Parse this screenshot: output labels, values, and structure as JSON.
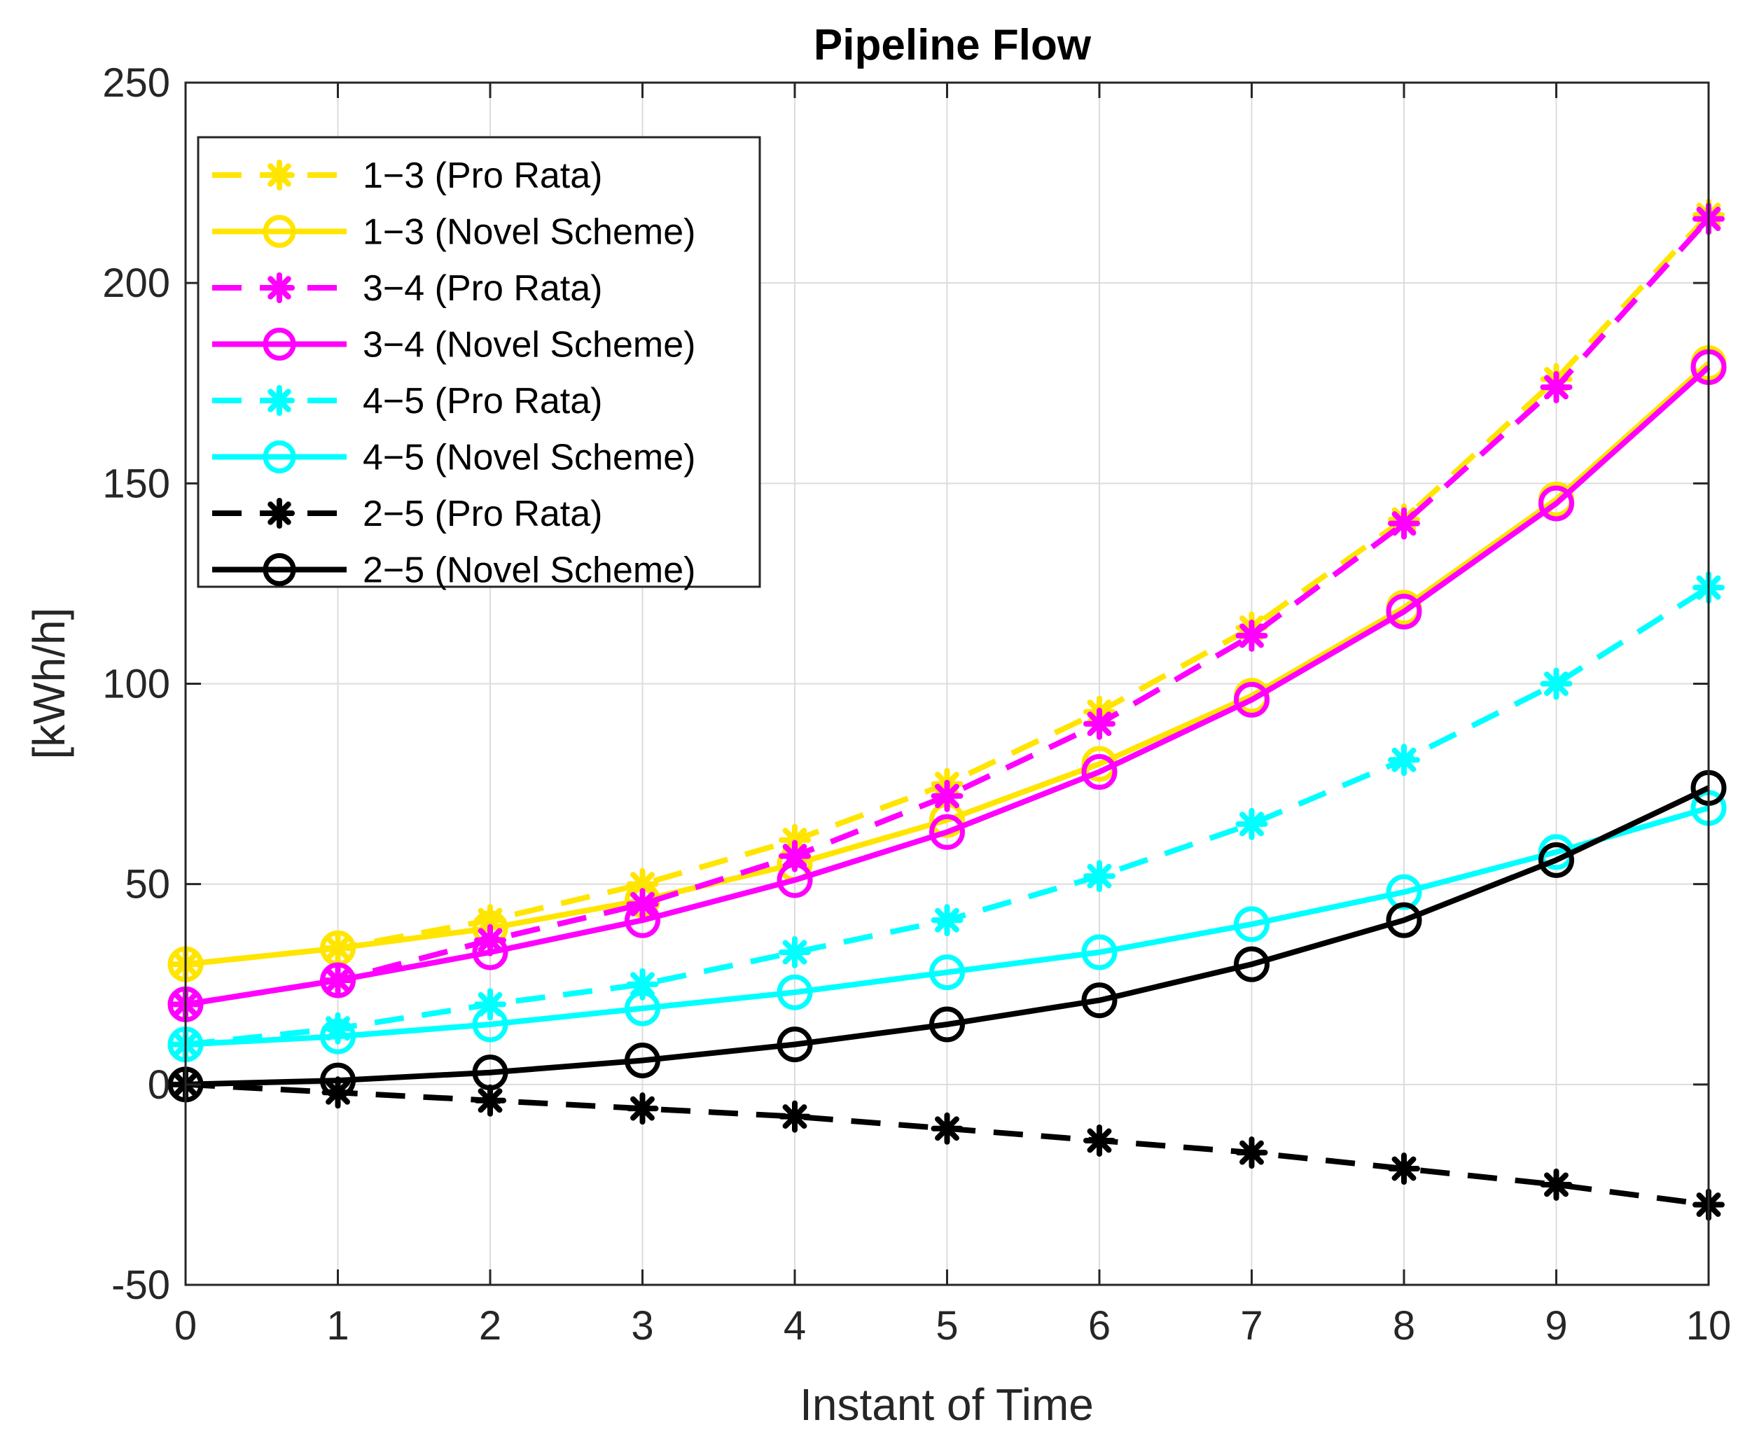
{
  "chart_data": {
    "type": "line",
    "title": "Pipeline Flow",
    "xlabel": "Instant of Time",
    "ylabel": "[kWh/h]",
    "x": [
      0,
      1,
      2,
      3,
      4,
      5,
      6,
      7,
      8,
      9,
      10
    ],
    "xlim": [
      0,
      10
    ],
    "ylim": [
      -50,
      250
    ],
    "xticks": [
      "0",
      "1",
      "2",
      "3",
      "4",
      "5",
      "6",
      "7",
      "8",
      "9",
      "10"
    ],
    "yticks": [
      "-50",
      "0",
      "50",
      "100",
      "150",
      "200",
      "250"
    ],
    "grid": true,
    "legend_position": "top-left",
    "series": [
      {
        "name": "1−3 (Pro Rata)",
        "color": "#ffe500",
        "style": "dashed",
        "marker": "asterisk",
        "values": [
          30,
          34,
          41,
          50,
          61,
          75,
          93,
          114,
          141,
          176,
          217
        ]
      },
      {
        "name": "1−3 (Novel Scheme)",
        "color": "#ffe500",
        "style": "solid",
        "marker": "circle",
        "values": [
          30,
          34,
          39,
          46,
          55,
          66,
          80,
          97,
          119,
          146,
          180
        ]
      },
      {
        "name": "3−4 (Pro Rata)",
        "color": "#ff00ff",
        "style": "dashed",
        "marker": "asterisk",
        "values": [
          20,
          26,
          36,
          45,
          57,
          72,
          90,
          112,
          140,
          174,
          216
        ]
      },
      {
        "name": "3−4 (Novel Scheme)",
        "color": "#ff00ff",
        "style": "solid",
        "marker": "circle",
        "values": [
          20,
          26,
          33,
          41,
          51,
          63,
          78,
          96,
          118,
          145,
          179
        ]
      },
      {
        "name": "4−5 (Pro Rata)",
        "color": "#00ffff",
        "style": "dashed",
        "marker": "asterisk",
        "values": [
          10,
          14,
          20,
          25,
          33,
          41,
          52,
          65,
          81,
          100,
          124
        ]
      },
      {
        "name": "4−5 (Novel Scheme)",
        "color": "#00ffff",
        "style": "solid",
        "marker": "circle",
        "values": [
          10,
          12,
          15,
          19,
          23,
          28,
          33,
          40,
          48,
          58,
          69
        ]
      },
      {
        "name": "2−5 (Pro Rata)",
        "color": "#000000",
        "style": "dashed",
        "marker": "asterisk",
        "values": [
          0,
          -2,
          -4,
          -6,
          -8,
          -11,
          -14,
          -17,
          -21,
          -25,
          -30
        ]
      },
      {
        "name": "2−5 (Novel Scheme)",
        "color": "#000000",
        "style": "solid",
        "marker": "circle",
        "values": [
          0,
          1,
          3,
          6,
          10,
          15,
          21,
          30,
          41,
          56,
          74
        ]
      }
    ]
  }
}
